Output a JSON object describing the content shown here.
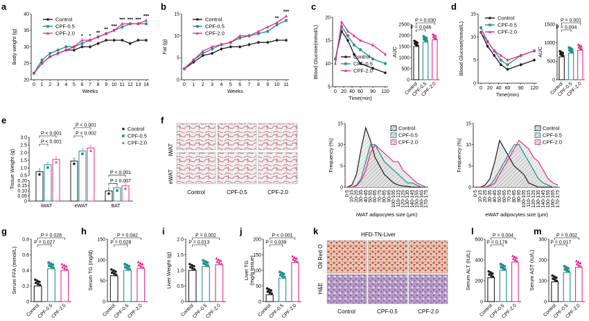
{
  "colors": {
    "control": "#1a1a1a",
    "cpf05": "#1f8f8a",
    "cpf20": "#e5288b",
    "hist_fill": "#cfcfcf"
  },
  "groups": [
    "Control",
    "CPF-0.5",
    "CPF-2.0"
  ],
  "chart_data": [
    {
      "id": "a",
      "panel_label": "a",
      "type": "line",
      "xlabel": "Weeks",
      "ylabel": "Body weight (g)",
      "x": [
        0,
        1,
        2,
        3,
        4,
        5,
        6,
        7,
        8,
        9,
        10,
        11,
        12,
        13,
        14
      ],
      "xticks": [
        "0",
        "1",
        "2",
        "3",
        "4",
        "5",
        "6",
        "7",
        "8",
        "9",
        "10",
        "11",
        "12",
        "13",
        "14"
      ],
      "ylim": [
        20,
        40
      ],
      "yticks": [
        "20",
        "25",
        "30",
        "35",
        "40"
      ],
      "series": [
        {
          "name": "Control",
          "values": [
            22,
            25,
            27,
            28,
            29,
            29,
            30,
            30,
            31,
            32,
            32,
            32,
            31,
            32,
            32
          ]
        },
        {
          "name": "CPF-0.5",
          "values": [
            22,
            26,
            28,
            29,
            30,
            30,
            31,
            32,
            33,
            34,
            35,
            36,
            37,
            37,
            37
          ]
        },
        {
          "name": "CPF-2.0",
          "values": [
            22,
            25,
            27,
            28,
            29,
            30,
            32,
            32,
            33,
            34,
            35,
            37,
            37,
            37,
            38
          ]
        }
      ],
      "stars": [
        "*",
        "*",
        "**",
        "**",
        "***",
        "***",
        "***",
        "***",
        "***"
      ]
    },
    {
      "id": "b",
      "panel_label": "b",
      "type": "line",
      "xlabel": "Weeks",
      "ylabel": "Fat (g)",
      "x": [
        0,
        1,
        2,
        3,
        4,
        5,
        6,
        7,
        8,
        9,
        10,
        11
      ],
      "xticks": [
        "0",
        "1",
        "2",
        "3",
        "4",
        "5",
        "6",
        "7",
        "8",
        "9",
        "10",
        "11"
      ],
      "ylim": [
        0,
        15
      ],
      "yticks": [
        "0",
        "5",
        "10",
        "15"
      ],
      "series": [
        {
          "name": "Control",
          "values": [
            2.5,
            4,
            5.5,
            6,
            7,
            7.5,
            7.5,
            8,
            8.5,
            8.5,
            9,
            9
          ]
        },
        {
          "name": "CPF-0.5",
          "values": [
            2.5,
            4.5,
            6,
            7,
            8,
            8.5,
            9.5,
            10,
            10.5,
            11,
            12.5,
            13.5
          ]
        },
        {
          "name": "CPF-2.0",
          "values": [
            2.5,
            4.5,
            6.5,
            7.5,
            8,
            8.5,
            10,
            10,
            11,
            12,
            13,
            14.5
          ]
        }
      ],
      "stars": [
        "**",
        "***"
      ]
    },
    {
      "id": "c",
      "panel_label": "c",
      "type": "line",
      "xlabel": "Time(min)",
      "ylabel": "Blood Glucose(mmol/L)",
      "x": [
        0,
        15,
        30,
        45,
        60,
        90,
        120
      ],
      "xticks": [
        "0",
        "20",
        "40",
        "60",
        "90",
        "120"
      ],
      "ylim": [
        5,
        20
      ],
      "yticks": [
        "5",
        "10",
        "15",
        "20"
      ],
      "series": [
        {
          "name": "Control",
          "values": [
            11,
            17,
            15,
            12,
            10,
            9,
            8
          ]
        },
        {
          "name": "CPF-0.5",
          "values": [
            11,
            18,
            16,
            14,
            13,
            11,
            10
          ]
        },
        {
          "name": "CPF-2.0",
          "values": [
            10,
            19,
            17,
            16,
            15,
            14,
            12
          ]
        }
      ]
    },
    {
      "id": "c_auc",
      "type": "bar",
      "ylabel": "AUC",
      "categories": [
        "Control",
        "CPF-0.5",
        "CPF-2.0"
      ],
      "values": [
        1500,
        1700,
        1800
      ],
      "ylim": [
        0,
        2500
      ],
      "yticks": [
        "0",
        "500",
        "1000",
        "1500",
        "2000",
        "2500"
      ],
      "annotations": [
        "P = 0.030",
        "P = 0.046"
      ]
    },
    {
      "id": "d",
      "panel_label": "d",
      "type": "line",
      "xlabel": "Time(min)",
      "ylabel": "Blood Glucose(mmol/L)",
      "x": [
        0,
        15,
        30,
        45,
        60,
        90,
        120
      ],
      "xticks": [
        "0",
        "20",
        "40",
        "60",
        "90",
        "120"
      ],
      "ylim": [
        0,
        15
      ],
      "yticks": [
        "0",
        "5",
        "10",
        "15"
      ],
      "series": [
        {
          "name": "Control",
          "values": [
            11,
            8,
            6,
            4,
            3,
            4,
            5
          ]
        },
        {
          "name": "CPF-0.5",
          "values": [
            12,
            9,
            7,
            5,
            4,
            6,
            7
          ]
        },
        {
          "name": "CPF-2.0",
          "values": [
            11,
            9,
            7,
            6,
            5,
            6,
            7
          ]
        }
      ]
    },
    {
      "id": "d_auc",
      "type": "bar",
      "ylabel": "AUC",
      "categories": [
        "Control",
        "CPF-0.5",
        "CPF-2.0"
      ],
      "values": [
        620,
        720,
        800
      ],
      "ylim": [
        0,
        1500
      ],
      "yticks": [
        "0",
        "500",
        "1000",
        "1500"
      ],
      "annotations": [
        "P = 0.001",
        "P = 0.004"
      ]
    },
    {
      "id": "e",
      "panel_label": "e",
      "type": "bar",
      "ylabel": "Tissue Weight (g)",
      "categories": [
        "iWAT",
        "eWAT",
        "BAT"
      ],
      "series": [
        {
          "name": "Control",
          "values": [
            0.75,
            1.45,
            0.1
          ]
        },
        {
          "name": "CPF-0.5",
          "values": [
            1.2,
            2.1,
            0.13
          ]
        },
        {
          "name": "CPF-2.0",
          "values": [
            1.55,
            2.3,
            0.15
          ]
        }
      ],
      "ylim": [
        0,
        2.5
      ],
      "yticks": [
        "0",
        "0.05",
        "0.10",
        "0.15",
        "0.20",
        "0.5",
        "1.0",
        "1.5",
        "2.0",
        "2.5",
        "3.0"
      ],
      "annotations": [
        "P < 0.001",
        "P < 0.001",
        "P < 0.001",
        "P = 0.002",
        "P < 0.001",
        "P = 0.007"
      ]
    },
    {
      "id": "f_iwat",
      "type": "area",
      "xlabel": "iWAT adipocytes size (μm)",
      "ylabel": "Frequency (%)",
      "categories": [
        "0-5",
        "10-15",
        "20-25",
        "30-35",
        "40-45",
        "50-55",
        "60-65",
        "70-75",
        "80-85",
        "90-95",
        "100-105",
        "110-115",
        "120-125",
        "130-135",
        "140-145",
        "150-155",
        "160-165",
        "170-175"
      ],
      "ylim": [
        0,
        15
      ],
      "yticks": [
        "0",
        "5",
        "10",
        "15"
      ],
      "series": [
        {
          "name": "Control",
          "values": [
            0,
            0.5,
            3,
            9,
            14,
            11,
            7,
            5,
            3,
            2,
            1,
            0.5,
            0.3,
            0.2,
            0,
            0,
            0,
            0
          ]
        },
        {
          "name": "CPF-0.5",
          "values": [
            0,
            0,
            0.5,
            2,
            6,
            10,
            10,
            8,
            6,
            5,
            4,
            3,
            2,
            1,
            1,
            0.5,
            0,
            0
          ]
        },
        {
          "name": "CPF-2.0",
          "values": [
            0,
            0,
            0.3,
            1.5,
            4,
            8,
            10,
            9,
            8,
            7,
            6,
            6,
            4,
            3,
            2,
            1,
            0.5,
            0
          ]
        }
      ]
    },
    {
      "id": "f_ewat",
      "type": "area",
      "xlabel": "eWAT adipocytes size (μm)",
      "ylabel": "Frequency (%)",
      "categories": [
        "0-5",
        "10-15",
        "20-25",
        "30-35",
        "40-45",
        "50-55",
        "60-65",
        "70-75",
        "80-85",
        "90-95",
        "100-105",
        "110-115",
        "120-125",
        "130-135",
        "140-145",
        "150-155",
        "160-165",
        "170-175"
      ],
      "ylim": [
        0,
        15
      ],
      "yticks": [
        "0",
        "5",
        "10",
        "15"
      ],
      "series": [
        {
          "name": "Control",
          "values": [
            0,
            0,
            0.5,
            2,
            6,
            11,
            9,
            7,
            5,
            4,
            3,
            1,
            0.5,
            0,
            0,
            0,
            0,
            0
          ]
        },
        {
          "name": "CPF-0.5",
          "values": [
            0,
            0,
            0,
            0.5,
            2,
            4,
            6,
            8,
            10,
            10,
            8,
            6,
            4,
            2,
            1,
            0.5,
            0,
            0
          ]
        },
        {
          "name": "CPF-2.0",
          "values": [
            0,
            0,
            0,
            0.3,
            1,
            3,
            5,
            7,
            9,
            11,
            10,
            9,
            7,
            6,
            4,
            2,
            1,
            0.5
          ]
        }
      ]
    },
    {
      "id": "g",
      "panel_label": "g",
      "type": "bar",
      "ylabel": "Serum FFA (mmol/L)",
      "categories": [
        "Control",
        "CPF-0.5",
        "CPF-2.0"
      ],
      "values": [
        0.2,
        0.42,
        0.4
      ],
      "ylim": [
        0,
        0.8
      ],
      "yticks": [
        "0",
        "0.2",
        "0.4",
        "0.6",
        "0.8"
      ],
      "annotations": [
        "P = 0.028",
        "P = 0.027"
      ]
    },
    {
      "id": "h",
      "panel_label": "h",
      "type": "bar",
      "ylabel": "Serum TG (mg/d)",
      "categories": [
        "Control",
        "CPF-0.5",
        "CPF-2.0"
      ],
      "values": [
        62,
        75,
        80
      ],
      "ylim": [
        0,
        150
      ],
      "yticks": [
        "0",
        "50",
        "100",
        "150"
      ],
      "annotations": [
        "P = 0.042",
        "P = 0.028"
      ]
    },
    {
      "id": "i",
      "panel_label": "i",
      "type": "bar",
      "ylabel": "Liver Weight (g)",
      "categories": [
        "Control",
        "CPF-0.5",
        "CPF-2.0"
      ],
      "values": [
        1.0,
        1.12,
        1.18
      ],
      "ylim": [
        0,
        2.0
      ],
      "yticks": [
        "0",
        "0.5",
        "1.0",
        "1.5",
        "2.0"
      ],
      "annotations": [
        "P = 0.002",
        "P = 0.013"
      ]
    },
    {
      "id": "j",
      "panel_label": "j",
      "type": "bar",
      "ylabel": "Liver TG\n(mg/g tissue)",
      "categories": [
        "Control",
        "CPF-0.5",
        "CPF-2.0"
      ],
      "values": [
        22,
        75,
        125
      ],
      "ylim": [
        0,
        200
      ],
      "yticks": [
        "0",
        "50",
        "100",
        "150",
        "200"
      ],
      "annotations": [
        "P < 0.001",
        "P = 0.039"
      ]
    },
    {
      "id": "l",
      "panel_label": "l",
      "type": "bar",
      "ylabel": "Serum ALT (IU/L)",
      "categories": [
        "Control",
        "CPF-0.5",
        "CPF-2.0"
      ],
      "values": [
        230,
        300,
        380
      ],
      "ylim": [
        0,
        600
      ],
      "yticks": [
        "0",
        "200",
        "400",
        "600"
      ],
      "annotations": [
        "P = 0.004",
        "P = 0.176"
      ]
    },
    {
      "id": "m",
      "panel_label": "m",
      "type": "bar",
      "ylabel": "Serum AST (IU/L)",
      "categories": [
        "Control",
        "CPF-0.5",
        "CPF-2.0"
      ],
      "values": [
        95,
        140,
        165
      ],
      "ylim": [
        0,
        300
      ],
      "yticks": [
        "0",
        "100",
        "200",
        "300"
      ],
      "annotations": [
        "P = 0.002",
        "P = 0.017"
      ]
    }
  ],
  "images": {
    "f": {
      "panel_label": "f",
      "rows": [
        "iWAT",
        "eWAT"
      ],
      "cols": [
        "Control",
        "CPF-0.5",
        "CPF-2.0"
      ]
    },
    "k": {
      "panel_label": "k",
      "title": "HFD-TN-Liver",
      "rows": [
        "Oil Red O",
        "H&E"
      ],
      "cols": [
        "Control",
        "CPF-0.5",
        "CPF-2.0"
      ]
    }
  }
}
